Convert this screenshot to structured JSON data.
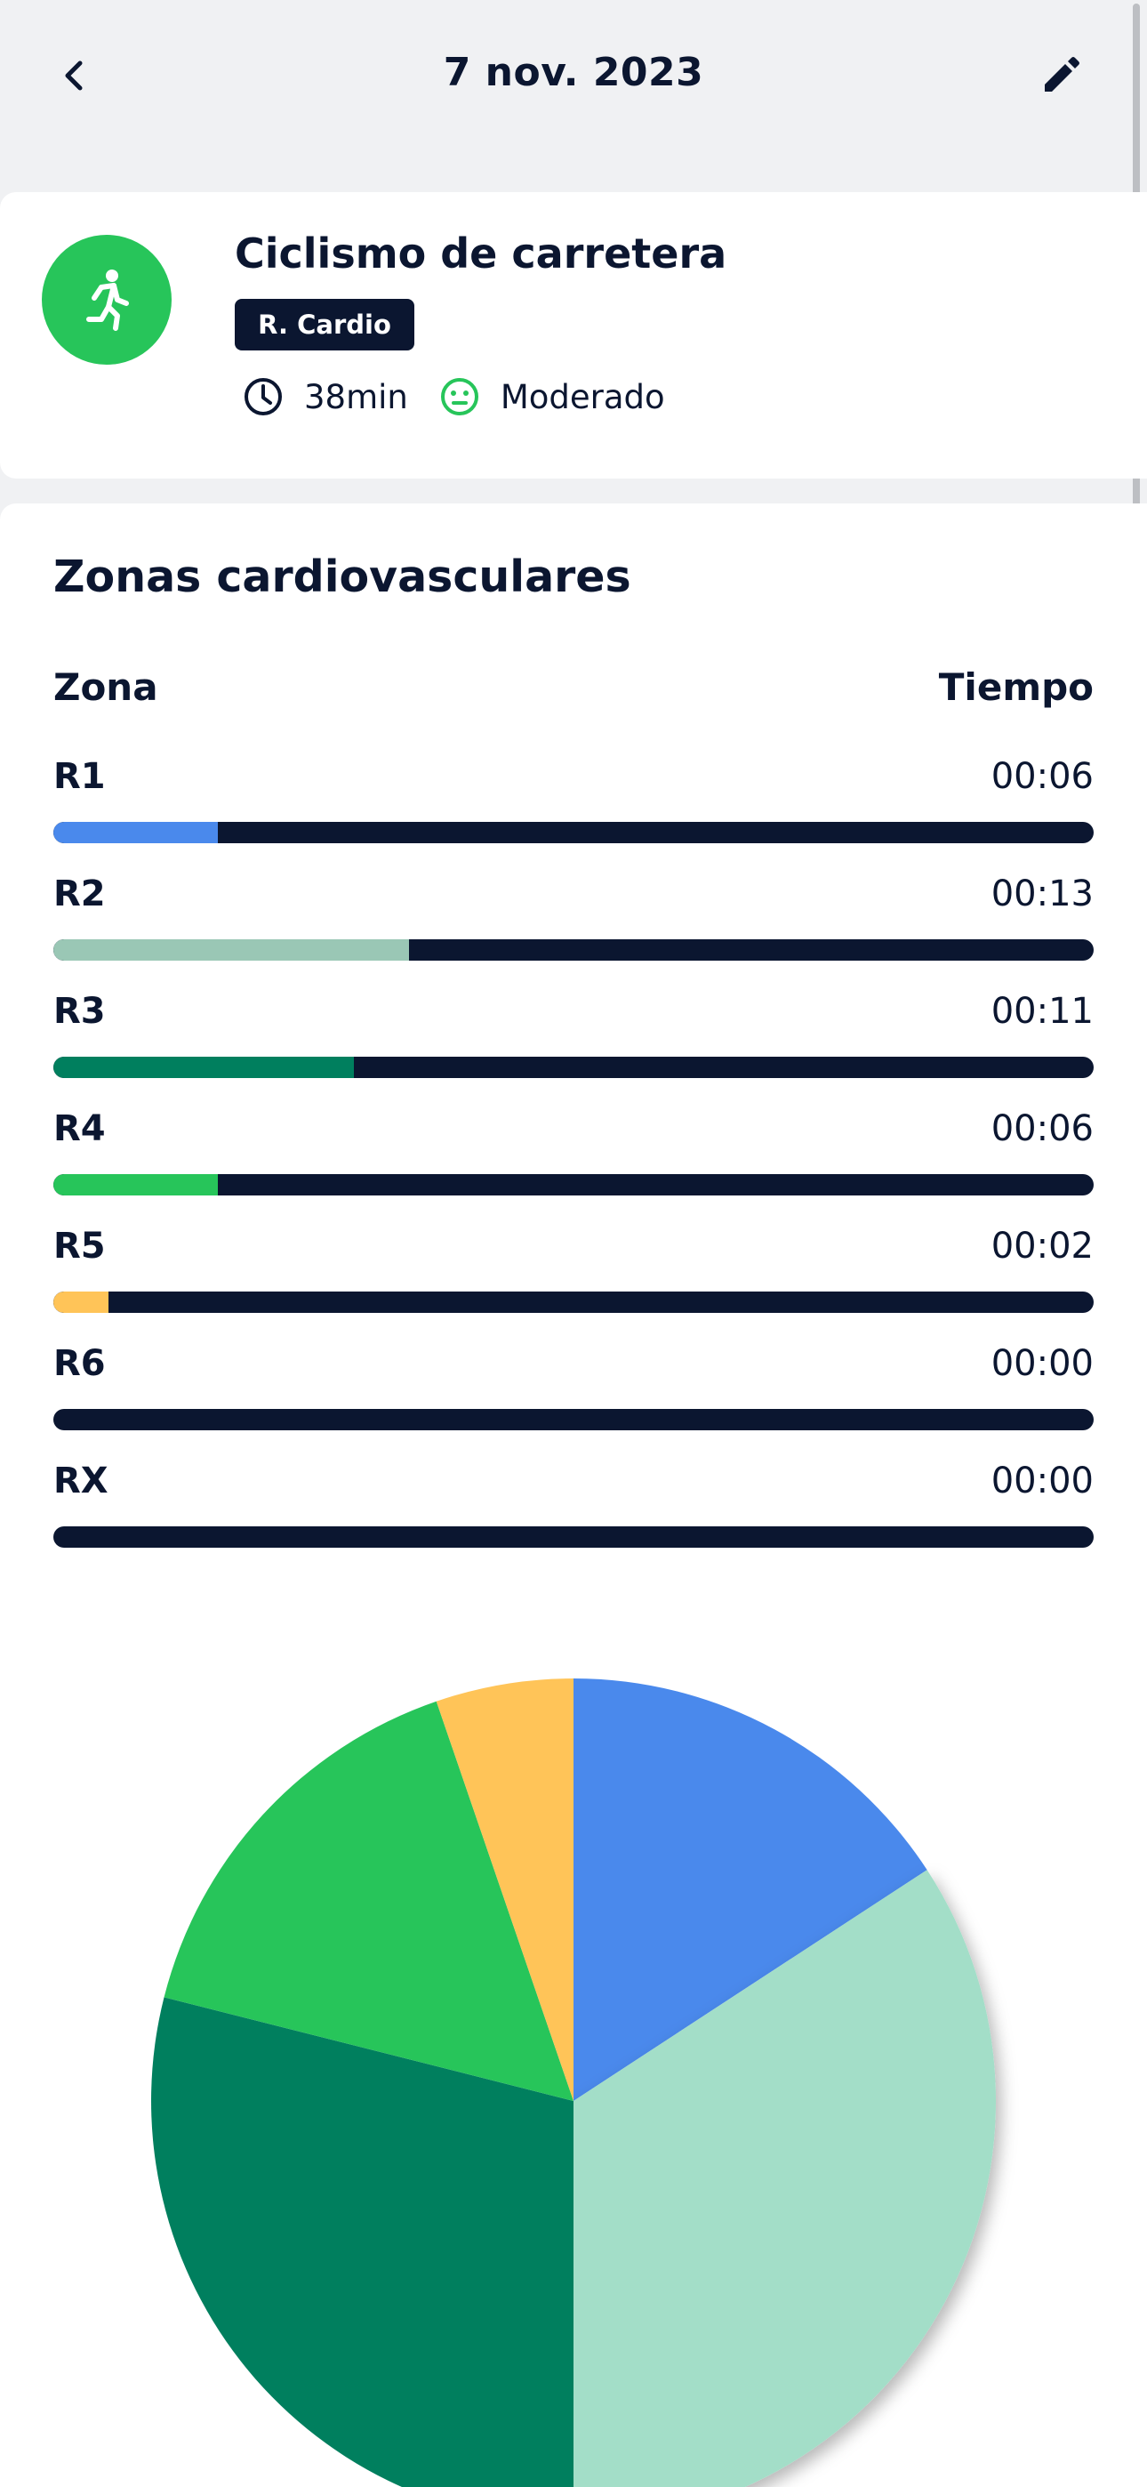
{
  "header": {
    "title": "7 nov. 2023",
    "back_icon": "chevron-left-icon",
    "edit_icon": "pencil-icon"
  },
  "activity": {
    "name": "Ciclismo de carretera",
    "tag": "R. Cardio",
    "duration": "38min",
    "intensity": "Moderado",
    "icon": "runner-icon",
    "avatar_color": "#27c55a"
  },
  "zones": {
    "title": "Zonas cardiovasculares",
    "col_zone": "Zona",
    "col_time": "Tiempo",
    "items": [
      {
        "label": "R1",
        "time": "00:06",
        "fraction": 0.158,
        "color": "#4a89ec"
      },
      {
        "label": "R2",
        "time": "00:13",
        "fraction": 0.342,
        "color": "#9ac7b5"
      },
      {
        "label": "R3",
        "time": "00:11",
        "fraction": 0.289,
        "color": "#007f5e"
      },
      {
        "label": "R4",
        "time": "00:06",
        "fraction": 0.158,
        "color": "#27c55a"
      },
      {
        "label": "R5",
        "time": "00:02",
        "fraction": 0.053,
        "color": "#ffc458"
      },
      {
        "label": "R6",
        "time": "00:00",
        "fraction": 0.0,
        "color": "#0b1630"
      },
      {
        "label": "RX",
        "time": "00:00",
        "fraction": 0.0,
        "color": "#0b1630"
      }
    ]
  },
  "chart_data": {
    "type": "pie",
    "categories": [
      "R1",
      "R2",
      "R3",
      "R4",
      "R5"
    ],
    "values": [
      6,
      13,
      11,
      6,
      2
    ],
    "colors": [
      "#4a89ec",
      "#a3dec8",
      "#007f5e",
      "#27c55a",
      "#ffc458"
    ]
  }
}
